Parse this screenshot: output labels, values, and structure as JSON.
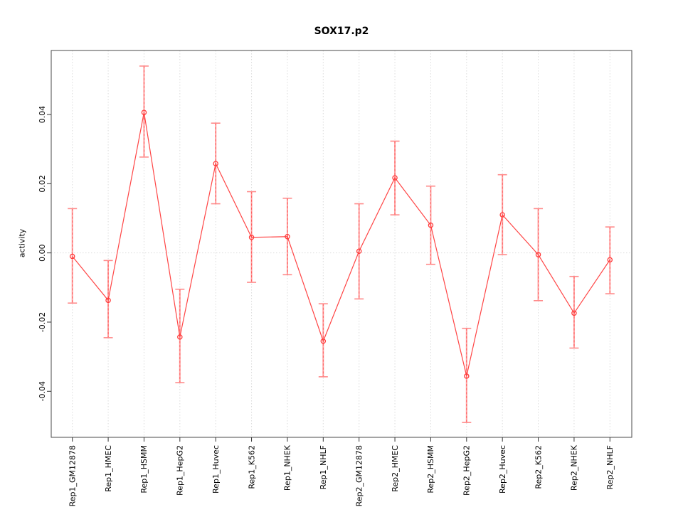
{
  "chart_data": {
    "type": "line",
    "title": "SOX17.p2",
    "xlabel": "",
    "ylabel": "activity",
    "categories": [
      "Rep1_GM12878",
      "Rep1_HMEC",
      "Rep1_HSMM",
      "Rep1_HepG2",
      "Rep1_Huvec",
      "Rep1_K562",
      "Rep1_NHEK",
      "Rep1_NHLF",
      "Rep2_GM12878",
      "Rep2_HMEC",
      "Rep2_HSMM",
      "Rep2_HepG2",
      "Rep2_Huvec",
      "Rep2_K562",
      "Rep2_NHEK",
      "Rep2_NHLF"
    ],
    "series": [
      {
        "name": "activity",
        "values": [
          -0.001,
          -0.0137,
          0.0406,
          -0.0243,
          0.0258,
          0.0045,
          0.0047,
          -0.0255,
          0.0005,
          0.0217,
          0.008,
          -0.0356,
          0.011,
          -0.0005,
          -0.0174,
          -0.002
        ],
        "ci_low": [
          -0.0145,
          -0.0245,
          0.0277,
          -0.0375,
          0.0142,
          -0.0085,
          -0.0063,
          -0.0358,
          -0.0133,
          0.011,
          -0.0033,
          -0.049,
          -0.0005,
          -0.0138,
          -0.0275,
          -0.0118
        ],
        "ci_high": [
          0.0128,
          -0.0022,
          0.054,
          -0.0105,
          0.0375,
          0.0177,
          0.0158,
          -0.0147,
          0.0142,
          0.0323,
          0.0193,
          -0.0218,
          0.0226,
          0.0128,
          -0.0068,
          0.0075
        ]
      }
    ],
    "yticks": [
      -0.04,
      -0.02,
      0,
      0.02,
      0.04
    ],
    "ylim": [
      -0.0533,
      0.0585
    ],
    "grid": "vertical-dotted-per-category-plus-zero-line",
    "legend_position": "none",
    "colors": {
      "series_line": "#ff4545",
      "point_stroke": "#ff3b3b",
      "error_bar": "#ffa0a0",
      "error_bar_dash": "#ff5252",
      "error_cap": "#ff8a8a",
      "gridline": "#dcdcdc",
      "axis_box": "#4a4a4a",
      "tick": "#333333",
      "text": "#000000"
    }
  }
}
